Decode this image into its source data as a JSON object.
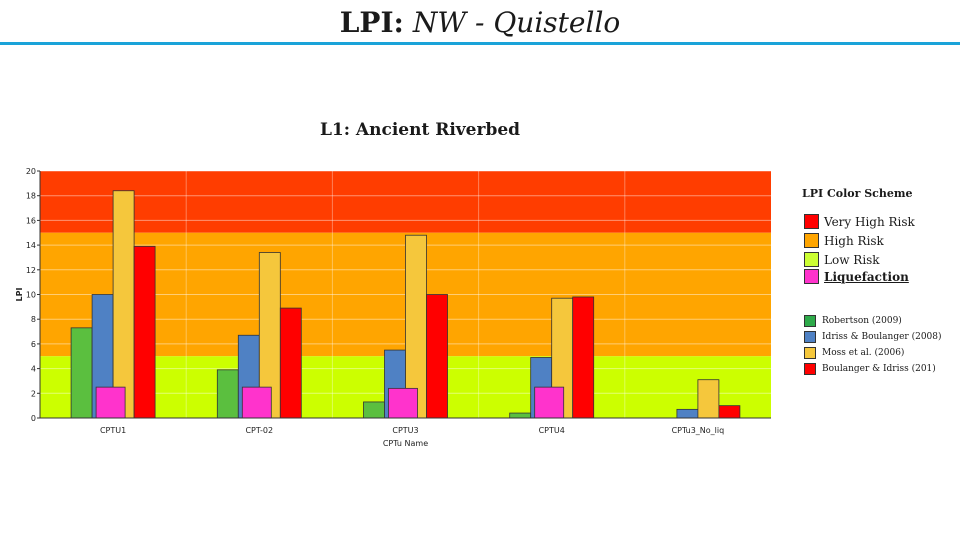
{
  "header": {
    "title_prefix": "LPI:",
    "title_rest": "NW - Quistello"
  },
  "chart_data": {
    "type": "bar",
    "title": "L1: Ancient Riverbed",
    "xlabel": "CPTu Name",
    "ylabel": "LPI",
    "ylim": [
      0,
      20
    ],
    "yticks": [
      0,
      2,
      4,
      6,
      8,
      10,
      12,
      14,
      16,
      18,
      20
    ],
    "grid": true,
    "categories": [
      "CPTU1",
      "CPT-02",
      "CPTU3",
      "CPTU4",
      "CPTu3_No_liq"
    ],
    "series": [
      {
        "name": "Robertson (2009)",
        "color": "#5bbf3f",
        "values": [
          7.3,
          3.9,
          1.3,
          0.4,
          0
        ]
      },
      {
        "name": "Idriss & Boulanger (2008)",
        "color": "#4f81c4",
        "values": [
          10.0,
          6.7,
          5.5,
          4.9,
          0.7
        ]
      },
      {
        "name": "Moss et al. (2006)",
        "color": "#f5c73c",
        "values": [
          18.4,
          13.4,
          14.8,
          9.7,
          3.1
        ]
      },
      {
        "name": "Boulanger & Idriss (201)",
        "color": "#ff0000",
        "values": [
          13.9,
          8.9,
          10.0,
          9.8,
          1.0
        ]
      },
      {
        "name": "Liquefaction",
        "color": "#ff33cc",
        "values": [
          2.5,
          2.5,
          2.4,
          2.5,
          null
        ]
      }
    ],
    "risk_bands": [
      {
        "name": "Very High Risk",
        "from": 15,
        "to": 20,
        "color": "#ff3d00"
      },
      {
        "name": "High Risk",
        "from": 5,
        "to": 15,
        "color": "#ffa500"
      },
      {
        "name": "Low Risk",
        "from": 0,
        "to": 5,
        "color": "#ccff00"
      }
    ],
    "legend_placement": "right"
  },
  "legend": {
    "heading": "LPI Color Scheme",
    "risk_items": [
      {
        "label": "Very High Risk",
        "color": "#ff0000"
      },
      {
        "label": "High Risk",
        "color": "#ffa500"
      },
      {
        "label": "Low Risk",
        "color": "#ccff33"
      },
      {
        "label": "Liquefaction",
        "color": "#ff33cc"
      }
    ],
    "method_items": [
      {
        "label": "Robertson (2009)",
        "color": "#2eaa4a"
      },
      {
        "label": "Idriss & Boulanger (2008)",
        "color": "#4f81c4"
      },
      {
        "label": "Moss et al. (2006)",
        "color": "#f5c73c"
      },
      {
        "label": "Boulanger & Idriss (201)",
        "color": "#ff0000"
      }
    ]
  }
}
